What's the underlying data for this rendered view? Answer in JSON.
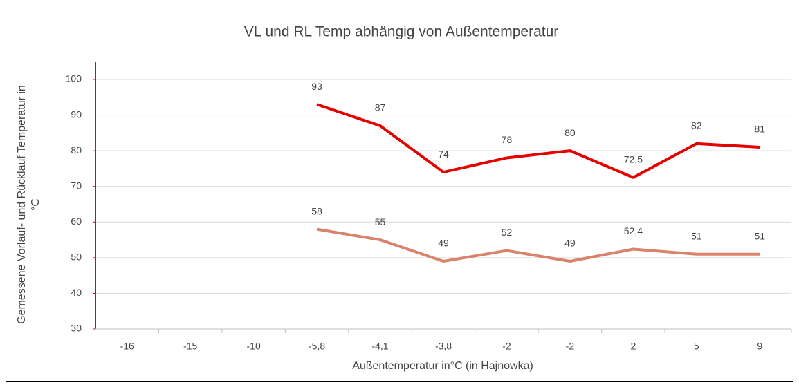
{
  "chart_data": {
    "type": "line",
    "title": "VL und RL Temp abhängig von Außentemperatur",
    "xlabel": "Außentemperatur in°C (in Hajnowka)",
    "ylabel": [
      "Gemessene Vorlauf- und Rücklauf Temperatur  in",
      "°C"
    ],
    "categories": [
      "-16",
      "-15",
      "-10",
      "-5,8",
      "-4,1",
      "-3,8",
      "-2",
      "-2",
      "2",
      "5",
      "9"
    ],
    "series": [
      {
        "color": "#e60000",
        "values": [
          null,
          null,
          null,
          93,
          87,
          74,
          78,
          80,
          72.5,
          82,
          81
        ],
        "value_labels": [
          null,
          null,
          null,
          "93",
          "87",
          "74",
          "78",
          "80",
          "72,5",
          "82",
          "81"
        ]
      },
      {
        "color": "#d9826c",
        "values": [
          null,
          null,
          null,
          58,
          55,
          49,
          52,
          49,
          52.4,
          51,
          51
        ],
        "value_labels": [
          null,
          null,
          null,
          "58",
          "55",
          "49",
          "52",
          "49",
          "52,4",
          "51",
          "51"
        ]
      }
    ],
    "ylim": [
      30,
      100
    ],
    "yticks": [
      30,
      40,
      50,
      60,
      70,
      80,
      90,
      100
    ],
    "grid": true
  }
}
